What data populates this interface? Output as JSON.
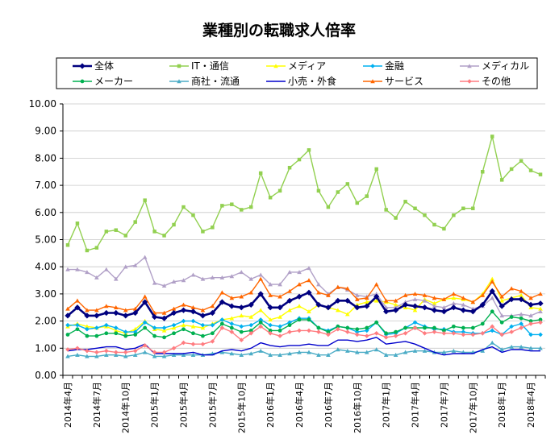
{
  "chart_data": {
    "type": "line",
    "title": "業種別の転職求人倍率",
    "ylim": [
      0,
      10
    ],
    "yticks": [
      "0.00",
      "1.00",
      "2.00",
      "3.00",
      "4.00",
      "5.00",
      "6.00",
      "7.00",
      "8.00",
      "9.00",
      "10.00"
    ],
    "grid": "horizontal",
    "legend_position": "top",
    "x_tick_labels": [
      {
        "i": 0,
        "label": "2014年4月"
      },
      {
        "i": 3,
        "label": "2014年7月"
      },
      {
        "i": 6,
        "label": "2014年10月"
      },
      {
        "i": 9,
        "label": "2015年1月"
      },
      {
        "i": 12,
        "label": "2015年4月"
      },
      {
        "i": 15,
        "label": "2015年7月"
      },
      {
        "i": 18,
        "label": "2015年10月"
      },
      {
        "i": 21,
        "label": "2016年1月"
      },
      {
        "i": 24,
        "label": "2016年4月"
      },
      {
        "i": 27,
        "label": "2016年7月"
      },
      {
        "i": 30,
        "label": "2016年10月"
      },
      {
        "i": 33,
        "label": "2017年1月"
      },
      {
        "i": 36,
        "label": "2017年4月"
      },
      {
        "i": 39,
        "label": "2017年7月"
      },
      {
        "i": 42,
        "label": "2017年10月"
      },
      {
        "i": 45,
        "label": "2018年1月"
      },
      {
        "i": 48,
        "label": "2018年4月"
      }
    ],
    "num_points": 50,
    "series": [
      {
        "name": "全体",
        "color": "#00007F",
        "marker": "diamond",
        "width": 2.6,
        "values": [
          2.2,
          2.5,
          2.2,
          2.2,
          2.3,
          2.3,
          2.2,
          2.3,
          2.7,
          2.15,
          2.1,
          2.3,
          2.4,
          2.35,
          2.2,
          2.3,
          2.7,
          2.55,
          2.5,
          2.6,
          3.0,
          2.5,
          2.5,
          2.75,
          2.9,
          3.05,
          2.6,
          2.5,
          2.75,
          2.75,
          2.5,
          2.55,
          2.9,
          2.35,
          2.4,
          2.6,
          2.55,
          2.5,
          2.4,
          2.35,
          2.5,
          2.4,
          2.35,
          2.6,
          3.1,
          2.55,
          2.8,
          2.8,
          2.6,
          2.65
        ]
      },
      {
        "name": "IT・通信",
        "color": "#92D050",
        "marker": "square",
        "width": 1.4,
        "values": [
          4.8,
          5.6,
          4.6,
          4.7,
          5.3,
          5.35,
          5.15,
          5.65,
          6.45,
          5.3,
          5.15,
          5.55,
          6.2,
          5.9,
          5.3,
          5.45,
          6.25,
          6.3,
          6.1,
          6.2,
          7.45,
          6.55,
          6.8,
          7.65,
          7.95,
          8.3,
          6.8,
          6.2,
          6.75,
          7.05,
          6.35,
          6.6,
          7.6,
          6.1,
          5.8,
          6.4,
          6.15,
          5.9,
          5.55,
          5.4,
          5.9,
          6.15,
          6.15,
          7.5,
          8.8,
          7.2,
          7.6,
          7.9,
          7.55,
          7.4
        ]
      },
      {
        "name": "メディア",
        "color": "#FFFF00",
        "marker": "triangle",
        "width": 1.4,
        "values": [
          1.8,
          1.9,
          1.8,
          1.75,
          1.8,
          1.65,
          1.55,
          1.7,
          2.0,
          1.7,
          1.65,
          1.75,
          1.85,
          1.8,
          1.75,
          1.9,
          2.05,
          2.1,
          2.2,
          2.15,
          2.4,
          2.05,
          2.15,
          2.4,
          2.55,
          2.35,
          2.6,
          2.5,
          2.4,
          2.25,
          2.6,
          2.7,
          2.75,
          2.7,
          2.6,
          2.5,
          2.4,
          2.8,
          2.65,
          2.8,
          2.85,
          2.8,
          2.7,
          3.0,
          3.55,
          2.75,
          2.85,
          2.95,
          2.5,
          2.45
        ]
      },
      {
        "name": "金融",
        "color": "#00B0F0",
        "marker": "diamond",
        "width": 1.4,
        "values": [
          1.85,
          1.85,
          1.7,
          1.75,
          1.85,
          1.75,
          1.6,
          1.6,
          1.95,
          1.75,
          1.75,
          1.85,
          2.0,
          2.0,
          1.85,
          1.85,
          2.05,
          1.9,
          1.8,
          1.85,
          2.05,
          1.85,
          1.8,
          1.95,
          2.1,
          2.1,
          1.75,
          1.65,
          1.8,
          1.75,
          1.6,
          1.65,
          1.95,
          1.5,
          1.55,
          1.75,
          1.95,
          1.8,
          1.7,
          1.7,
          1.6,
          1.6,
          1.55,
          1.55,
          1.65,
          1.5,
          1.8,
          1.9,
          1.5,
          1.5
        ]
      },
      {
        "name": "メディカル",
        "color": "#B1A0C7",
        "marker": "triangle",
        "width": 1.4,
        "values": [
          3.9,
          3.9,
          3.8,
          3.6,
          3.9,
          3.55,
          4.0,
          4.05,
          4.35,
          3.4,
          3.3,
          3.45,
          3.5,
          3.7,
          3.55,
          3.6,
          3.6,
          3.65,
          3.8,
          3.55,
          3.7,
          3.35,
          3.35,
          3.8,
          3.8,
          3.95,
          3.35,
          3.0,
          3.25,
          3.15,
          2.95,
          2.9,
          3.0,
          2.5,
          2.5,
          2.7,
          2.8,
          2.75,
          2.55,
          2.5,
          2.65,
          2.6,
          2.45,
          2.55,
          2.85,
          2.2,
          2.2,
          2.25,
          2.2,
          2.35
        ]
      },
      {
        "name": "メーカー",
        "color": "#00B050",
        "marker": "circle",
        "width": 1.4,
        "values": [
          1.5,
          1.7,
          1.45,
          1.45,
          1.55,
          1.55,
          1.45,
          1.5,
          1.75,
          1.45,
          1.4,
          1.55,
          1.7,
          1.55,
          1.45,
          1.55,
          1.9,
          1.75,
          1.6,
          1.65,
          1.95,
          1.65,
          1.65,
          1.85,
          2.05,
          2.05,
          1.75,
          1.6,
          1.8,
          1.75,
          1.7,
          1.75,
          1.95,
          1.55,
          1.6,
          1.75,
          1.75,
          1.75,
          1.75,
          1.65,
          1.8,
          1.75,
          1.75,
          1.9,
          2.35,
          1.95,
          2.15,
          2.1,
          2.0,
          2.05
        ]
      },
      {
        "name": "商社・流通",
        "color": "#4BACC6",
        "marker": "triangle",
        "width": 1.4,
        "values": [
          0.7,
          0.75,
          0.7,
          0.7,
          0.75,
          0.75,
          0.7,
          0.75,
          0.85,
          0.7,
          0.7,
          0.75,
          0.75,
          0.75,
          0.75,
          0.8,
          0.85,
          0.8,
          0.75,
          0.8,
          0.9,
          0.75,
          0.75,
          0.8,
          0.85,
          0.85,
          0.75,
          0.75,
          0.95,
          0.9,
          0.85,
          0.85,
          0.95,
          0.75,
          0.75,
          0.85,
          0.9,
          0.9,
          0.85,
          0.85,
          0.9,
          0.85,
          0.85,
          0.9,
          1.2,
          0.95,
          1.05,
          1.05,
          1.0,
          1.0
        ]
      },
      {
        "name": "小売・外食",
        "color": "#0000CC",
        "marker": "none",
        "width": 1.4,
        "values": [
          0.9,
          0.95,
          0.95,
          1.0,
          1.05,
          1.05,
          0.95,
          1.0,
          1.15,
          0.8,
          0.8,
          0.8,
          0.8,
          0.85,
          0.75,
          0.75,
          0.9,
          0.95,
          0.9,
          1.0,
          1.2,
          1.1,
          1.05,
          1.1,
          1.1,
          1.15,
          1.1,
          1.1,
          1.3,
          1.3,
          1.25,
          1.3,
          1.4,
          1.15,
          1.2,
          1.25,
          1.15,
          1.0,
          0.85,
          0.75,
          0.8,
          0.8,
          0.8,
          0.95,
          1.05,
          0.85,
          0.95,
          0.95,
          0.9,
          0.9
        ]
      },
      {
        "name": "サービス",
        "color": "#FF6600",
        "marker": "triangle",
        "width": 1.4,
        "values": [
          2.45,
          2.75,
          2.4,
          2.4,
          2.55,
          2.5,
          2.4,
          2.45,
          2.9,
          2.3,
          2.3,
          2.45,
          2.6,
          2.5,
          2.4,
          2.55,
          3.05,
          2.85,
          2.9,
          3.05,
          3.55,
          2.95,
          2.9,
          3.1,
          3.35,
          3.5,
          3.05,
          2.95,
          3.25,
          3.2,
          2.8,
          2.85,
          3.35,
          2.75,
          2.75,
          2.95,
          3.0,
          2.95,
          2.85,
          2.8,
          3.0,
          2.85,
          2.7,
          2.95,
          3.45,
          2.9,
          3.2,
          3.1,
          2.85,
          3.0
        ]
      },
      {
        "name": "その他",
        "color": "#FF7C80",
        "marker": "diamond",
        "width": 1.4,
        "values": [
          0.95,
          1.0,
          0.9,
          0.85,
          0.9,
          0.85,
          0.85,
          0.9,
          1.1,
          0.85,
          0.85,
          1.0,
          1.2,
          1.15,
          1.15,
          1.25,
          1.75,
          1.6,
          1.3,
          1.55,
          1.8,
          1.55,
          1.45,
          1.6,
          1.65,
          1.65,
          1.6,
          1.5,
          1.7,
          1.6,
          1.5,
          1.45,
          1.55,
          1.4,
          1.45,
          1.55,
          1.75,
          1.55,
          1.6,
          1.55,
          1.55,
          1.5,
          1.5,
          1.55,
          1.8,
          1.5,
          1.6,
          1.75,
          1.9,
          1.95
        ]
      }
    ]
  }
}
